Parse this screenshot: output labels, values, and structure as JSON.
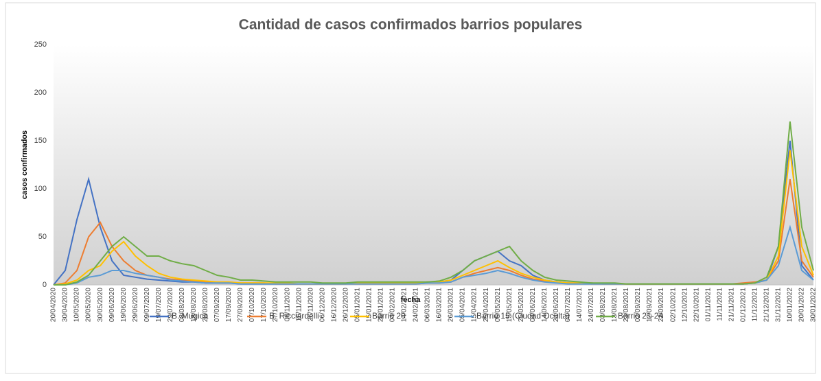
{
  "chart_data": {
    "type": "line",
    "title": "Cantidad de casos confirmados barrios populares",
    "x_label": "fecha",
    "y_label": "casos confirmados",
    "categories": [
      "20/04/2020",
      "30/04/2020",
      "10/05/2020",
      "20/05/2020",
      "30/05/2020",
      "09/06/2020",
      "19/06/2020",
      "29/06/2020",
      "09/07/2020",
      "19/07/2020",
      "29/07/2020",
      "08/08/2020",
      "18/08/2020",
      "28/08/2020",
      "07/09/2020",
      "17/09/2020",
      "27/09/2020",
      "07/10/2020",
      "17/10/2020",
      "27/10/2020",
      "06/11/2020",
      "16/11/2020",
      "26/11/2020",
      "06/12/2020",
      "16/12/2020",
      "26/12/2020",
      "05/01/2021",
      "15/01/2021",
      "25/01/2021",
      "04/02/2021",
      "14/02/2021",
      "24/02/2021",
      "06/03/2021",
      "16/03/2021",
      "26/03/2021",
      "05/04/2021",
      "15/04/2021",
      "25/04/2021",
      "05/05/2021",
      "15/05/2021",
      "25/05/2021",
      "04/06/2021",
      "14/06/2021",
      "24/06/2021",
      "04/07/2021",
      "14/07/2021",
      "24/07/2021",
      "03/08/2021",
      "13/08/2021",
      "23/08/2021",
      "02/09/2021",
      "12/09/2021",
      "22/09/2021",
      "02/10/2021",
      "12/10/2021",
      "22/10/2021",
      "01/11/2021",
      "11/11/2021",
      "21/11/2021",
      "01/12/2021",
      "11/12/2021",
      "21/12/2021",
      "31/12/2021",
      "10/01/2022",
      "20/01/2022",
      "30/01/2022"
    ],
    "series": [
      {
        "name": "B. Mugica",
        "color": "#4472c4",
        "values": [
          0,
          15,
          68,
          110,
          60,
          25,
          10,
          8,
          6,
          5,
          4,
          3,
          3,
          2,
          2,
          2,
          1,
          1,
          1,
          1,
          1,
          1,
          1,
          1,
          1,
          1,
          2,
          2,
          2,
          2,
          2,
          2,
          3,
          3,
          5,
          15,
          25,
          30,
          35,
          25,
          20,
          10,
          5,
          3,
          2,
          2,
          2,
          1,
          1,
          1,
          1,
          1,
          1,
          1,
          1,
          1,
          1,
          1,
          1,
          1,
          2,
          5,
          40,
          150,
          20,
          5
        ]
      },
      {
        "name": "B. Ricciardelli",
        "color": "#ed7d31",
        "values": [
          0,
          2,
          15,
          50,
          65,
          40,
          25,
          15,
          10,
          8,
          6,
          5,
          4,
          3,
          2,
          2,
          2,
          2,
          2,
          1,
          1,
          1,
          1,
          1,
          1,
          1,
          1,
          1,
          1,
          1,
          1,
          1,
          2,
          2,
          3,
          8,
          12,
          15,
          18,
          15,
          10,
          6,
          4,
          3,
          2,
          2,
          1,
          1,
          1,
          1,
          1,
          1,
          1,
          1,
          1,
          1,
          1,
          1,
          1,
          2,
          3,
          5,
          25,
          110,
          25,
          8
        ]
      },
      {
        "name": "Barrio 20",
        "color": "#ffc000",
        "values": [
          0,
          1,
          5,
          15,
          20,
          35,
          45,
          30,
          20,
          12,
          8,
          6,
          5,
          4,
          3,
          3,
          2,
          2,
          2,
          2,
          2,
          1,
          1,
          1,
          1,
          1,
          2,
          2,
          2,
          2,
          2,
          2,
          3,
          3,
          5,
          10,
          15,
          20,
          25,
          18,
          12,
          8,
          5,
          3,
          2,
          2,
          2,
          1,
          1,
          1,
          1,
          1,
          1,
          1,
          1,
          1,
          1,
          1,
          1,
          1,
          2,
          5,
          30,
          140,
          40,
          10
        ]
      },
      {
        "name": "Barrio 15 (Ciudad Oculta)",
        "color": "#5b9bd5",
        "values": [
          0,
          0,
          2,
          8,
          10,
          15,
          15,
          12,
          10,
          8,
          5,
          4,
          3,
          2,
          2,
          2,
          1,
          1,
          1,
          1,
          1,
          1,
          1,
          1,
          1,
          1,
          1,
          1,
          1,
          1,
          1,
          1,
          2,
          2,
          3,
          8,
          10,
          12,
          15,
          12,
          8,
          5,
          3,
          2,
          1,
          1,
          1,
          1,
          1,
          1,
          1,
          1,
          1,
          1,
          1,
          1,
          1,
          1,
          1,
          1,
          2,
          5,
          20,
          60,
          15,
          5
        ]
      },
      {
        "name": "Barrio 21-24",
        "color": "#70ad47",
        "values": [
          0,
          0,
          3,
          10,
          25,
          40,
          50,
          40,
          30,
          30,
          25,
          22,
          20,
          15,
          10,
          8,
          5,
          5,
          4,
          3,
          3,
          3,
          3,
          2,
          2,
          2,
          3,
          3,
          3,
          3,
          3,
          3,
          3,
          4,
          8,
          15,
          25,
          30,
          35,
          40,
          25,
          15,
          8,
          5,
          4,
          3,
          2,
          2,
          2,
          1,
          1,
          1,
          1,
          1,
          1,
          1,
          1,
          1,
          1,
          1,
          2,
          8,
          40,
          170,
          60,
          15
        ]
      }
    ],
    "ylim": [
      0,
      250
    ],
    "yticks": [
      0,
      50,
      100,
      150,
      200,
      250
    ],
    "grid": false,
    "legend": "bottom"
  }
}
